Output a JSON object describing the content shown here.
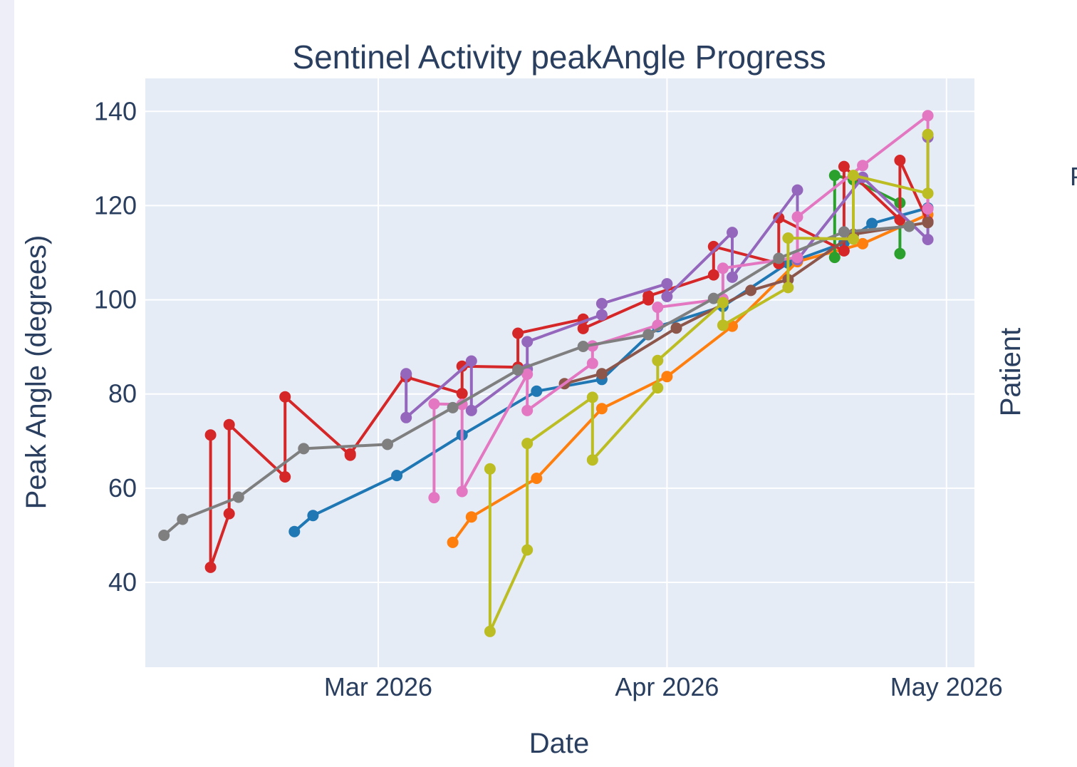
{
  "chart_data": {
    "type": "line",
    "title": "Sentinel Activity peakAngle Progress",
    "xlabel": "Date",
    "ylabel": "Peak Angle (degrees)",
    "legend_title": "Patient",
    "legend_partial_text": "P",
    "xlim": [
      "2026-02-04",
      "2026-05-04"
    ],
    "ylim": [
      22,
      147
    ],
    "x_ticks": [
      {
        "value": "2026-03-01",
        "label": "Mar 2026"
      },
      {
        "value": "2026-04-01",
        "label": "Apr 2026"
      },
      {
        "value": "2026-05-01",
        "label": "May 2026"
      }
    ],
    "y_ticks": [
      40,
      60,
      80,
      100,
      120,
      140
    ],
    "grid": true,
    "markers": true,
    "colors": {
      "plot_bg": "#e5ecf6",
      "grid": "#ffffff",
      "text": "#2a3f5f"
    },
    "series": [
      {
        "color": "#1f77b4",
        "x": [
          "2026-02-20",
          "2026-02-22",
          "2026-03-03",
          "2026-03-10",
          "2026-03-18",
          "2026-03-25",
          "2026-03-31",
          "2026-04-07",
          "2026-04-14",
          "2026-04-20",
          "2026-04-23",
          "2026-04-29"
        ],
        "y": [
          50.8,
          54.2,
          62.7,
          71.3,
          80.6,
          83.1,
          94.3,
          98.6,
          107.8,
          112.1,
          116.2,
          119.5
        ]
      },
      {
        "color": "#ff7f0e",
        "x": [
          "2026-03-09",
          "2026-03-11",
          "2026-03-18",
          "2026-03-25",
          "2026-04-01",
          "2026-04-08",
          "2026-04-15",
          "2026-04-22",
          "2026-04-29"
        ],
        "y": [
          48.5,
          53.9,
          62.1,
          76.9,
          83.7,
          94.4,
          108.1,
          111.9,
          118.1
        ]
      },
      {
        "color": "#2ca02c",
        "x": [
          "2026-04-19",
          "2026-04-19",
          "2026-04-21",
          "2026-04-26",
          "2026-04-26"
        ],
        "y": [
          109.0,
          126.4,
          125.5,
          120.6,
          109.8
        ]
      },
      {
        "color": "#d62728",
        "x": [
          "2026-02-11",
          "2026-02-11",
          "2026-02-13",
          "2026-02-13",
          "2026-02-19",
          "2026-02-19",
          "2026-02-26",
          "2026-02-26",
          "2026-03-04",
          "2026-03-04",
          "2026-03-10",
          "2026-03-10",
          "2026-03-16",
          "2026-03-16",
          "2026-03-23",
          "2026-03-23",
          "2026-03-30",
          "2026-03-30",
          "2026-04-06",
          "2026-04-06",
          "2026-04-13",
          "2026-04-13",
          "2026-04-20",
          "2026-04-20",
          "2026-04-26",
          "2026-04-26",
          "2026-04-29"
        ],
        "y": [
          71.3,
          43.2,
          54.6,
          73.5,
          62.4,
          79.4,
          67.0,
          67.3,
          84.2,
          83.6,
          80.1,
          85.9,
          85.7,
          92.9,
          95.9,
          93.9,
          100.0,
          100.8,
          105.3,
          111.3,
          107.7,
          117.4,
          110.4,
          128.3,
          117.0,
          129.6,
          116.6
        ]
      },
      {
        "color": "#9467bd",
        "x": [
          "2026-03-04",
          "2026-03-04",
          "2026-03-11",
          "2026-03-11",
          "2026-03-17",
          "2026-03-17",
          "2026-03-25",
          "2026-03-25",
          "2026-04-01",
          "2026-04-01",
          "2026-04-08",
          "2026-04-08",
          "2026-04-15",
          "2026-04-15",
          "2026-04-22",
          "2026-04-29",
          "2026-04-29"
        ],
        "y": [
          84.3,
          75.0,
          87.0,
          76.5,
          85.3,
          91.1,
          96.8,
          99.2,
          103.4,
          100.7,
          114.3,
          104.8,
          123.3,
          108.5,
          126.0,
          112.8,
          134.5
        ]
      },
      {
        "color": "#8c564b",
        "x": [
          "2026-03-21",
          "2026-03-25",
          "2026-04-02",
          "2026-04-10",
          "2026-04-14",
          "2026-04-21",
          "2026-04-29"
        ],
        "y": [
          82.2,
          84.3,
          94.0,
          102.0,
          104.3,
          113.9,
          116.4
        ]
      },
      {
        "color": "#e377c2",
        "x": [
          "2026-03-07",
          "2026-03-07",
          "2026-03-10",
          "2026-03-10",
          "2026-03-17",
          "2026-03-17",
          "2026-03-24",
          "2026-03-24",
          "2026-03-31",
          "2026-03-31",
          "2026-04-07",
          "2026-04-07",
          "2026-04-15",
          "2026-04-15",
          "2026-04-22",
          "2026-04-29",
          "2026-04-29"
        ],
        "y": [
          58.0,
          77.9,
          77.8,
          59.3,
          84.2,
          76.5,
          86.5,
          90.2,
          94.6,
          98.4,
          100.2,
          106.7,
          109.0,
          117.6,
          128.5,
          139.1,
          119.3
        ]
      },
      {
        "color": "#7f7f7f",
        "x": [
          "2026-02-06",
          "2026-02-08",
          "2026-02-14",
          "2026-02-21",
          "2026-03-02",
          "2026-03-09",
          "2026-03-16",
          "2026-03-23",
          "2026-03-30",
          "2026-04-06",
          "2026-04-13",
          "2026-04-20",
          "2026-04-27"
        ],
        "y": [
          50.0,
          53.4,
          58.1,
          68.4,
          69.3,
          77.1,
          85.1,
          90.1,
          92.6,
          100.3,
          108.8,
          114.4,
          115.6
        ]
      },
      {
        "color": "#bcbd22",
        "x": [
          "2026-03-13",
          "2026-03-13",
          "2026-03-17",
          "2026-03-17",
          "2026-03-24",
          "2026-03-24",
          "2026-03-31",
          "2026-03-31",
          "2026-04-07",
          "2026-04-07",
          "2026-04-14",
          "2026-04-14",
          "2026-04-21",
          "2026-04-21",
          "2026-04-29",
          "2026-04-29"
        ],
        "y": [
          64.1,
          29.6,
          46.9,
          69.5,
          79.3,
          66.0,
          81.3,
          87.1,
          99.4,
          94.6,
          102.6,
          113.1,
          112.9,
          126.4,
          122.6,
          135.1
        ]
      }
    ]
  }
}
